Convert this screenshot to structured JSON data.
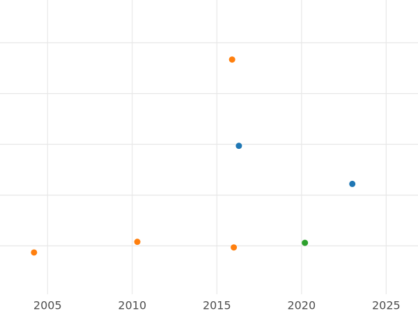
{
  "chart_data": {
    "type": "scatter",
    "title": "",
    "xlabel": "",
    "ylabel": "",
    "grid": true,
    "legend": false,
    "x_ticks": [
      2005,
      2010,
      2015,
      2020,
      2025
    ],
    "x_tick_labels": [
      "2005",
      "2010",
      "2015",
      "2020",
      "2025"
    ],
    "y_axis": {
      "labeled": false,
      "note": "y-axis tick labels are cropped out of the screenshot; y values are estimated in gridline units, 0 = bottom visible gridline, +1 per gridline upward",
      "gridline_units": [
        0,
        1,
        2,
        3,
        4
      ]
    },
    "xlim": [
      2002.19,
      2026.88
    ],
    "ylim_units": [
      -0.952,
      4.842
    ],
    "series": [
      {
        "name": "orange",
        "color": "#ff7f0e",
        "points": [
          {
            "x": 2004.2,
            "y": -0.13
          },
          {
            "x": 2010.3,
            "y": 0.08
          },
          {
            "x": 2015.9,
            "y": 3.67
          },
          {
            "x": 2016.0,
            "y": -0.03
          }
        ]
      },
      {
        "name": "blue",
        "color": "#1f77b4",
        "points": [
          {
            "x": 2016.3,
            "y": 1.97
          },
          {
            "x": 2023.0,
            "y": 1.22
          }
        ]
      },
      {
        "name": "green",
        "color": "#2ca02c",
        "points": [
          {
            "x": 2020.2,
            "y": 0.06
          }
        ]
      }
    ],
    "colors": {
      "background": "#ffffff",
      "gridline": "#e7e7e7",
      "tick_label": "#4d4d4d"
    },
    "marker": {
      "shape": "circle",
      "radius_px": 4.5
    }
  }
}
